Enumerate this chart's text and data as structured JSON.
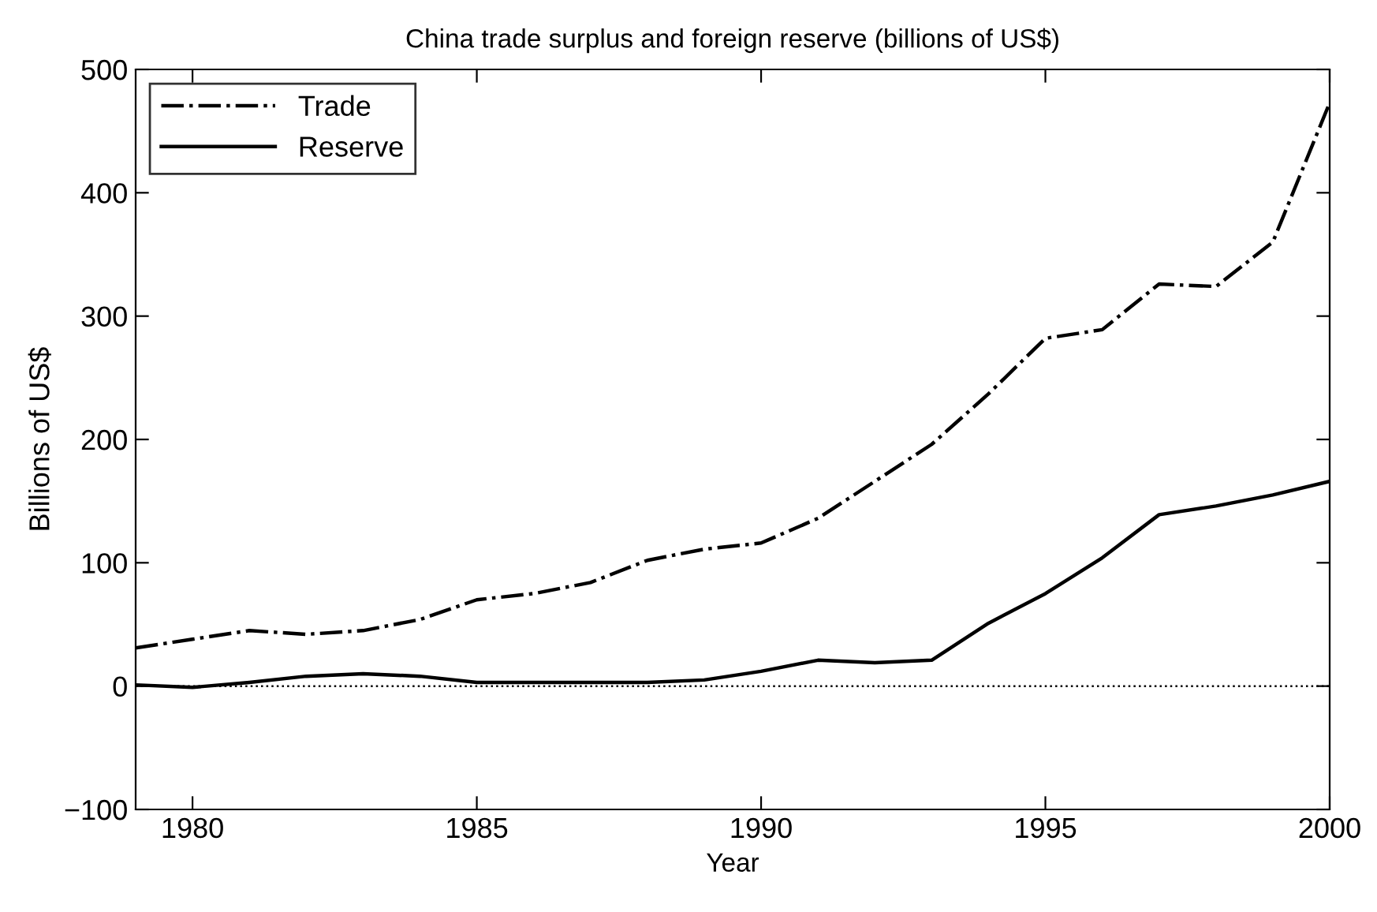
{
  "chart_data": {
    "type": "line",
    "title": "China trade surplus and foreign reserve (billions of US$)",
    "xlabel": "Year",
    "ylabel": "Billions of US$",
    "x": [
      1979,
      1980,
      1981,
      1982,
      1983,
      1984,
      1985,
      1986,
      1987,
      1988,
      1989,
      1990,
      1991,
      1992,
      1993,
      1994,
      1995,
      1996,
      1997,
      1998,
      1999,
      2000
    ],
    "series": [
      {
        "name": "Trade",
        "color": "#000000",
        "line_style": "dashdot",
        "values": [
          31,
          38,
          45,
          42,
          45,
          54,
          70,
          75,
          84,
          102,
          111,
          116,
          136,
          166,
          196,
          237,
          282,
          289,
          326,
          324,
          360,
          473
        ]
      },
      {
        "name": "Reserve",
        "color": "#000000",
        "line_style": "solid",
        "values": [
          1,
          -1,
          3,
          8,
          10,
          8,
          3,
          3,
          3,
          3,
          5,
          12,
          21,
          19,
          21,
          51,
          75,
          104,
          139,
          146,
          155,
          166
        ]
      }
    ],
    "xlim": [
      1979,
      2000
    ],
    "xticks": [
      1980,
      1985,
      1990,
      1995,
      2000
    ],
    "ylim": [
      -100,
      500
    ],
    "yticks": [
      {
        "value": -100,
        "label": "−100"
      },
      0,
      100,
      200,
      300,
      400,
      500
    ],
    "ref_lines": [
      {
        "axis": "y",
        "value": 0,
        "color": "#000000",
        "line_style": "dotted"
      }
    ],
    "grid": false,
    "legend": "top left",
    "marker": "none"
  }
}
